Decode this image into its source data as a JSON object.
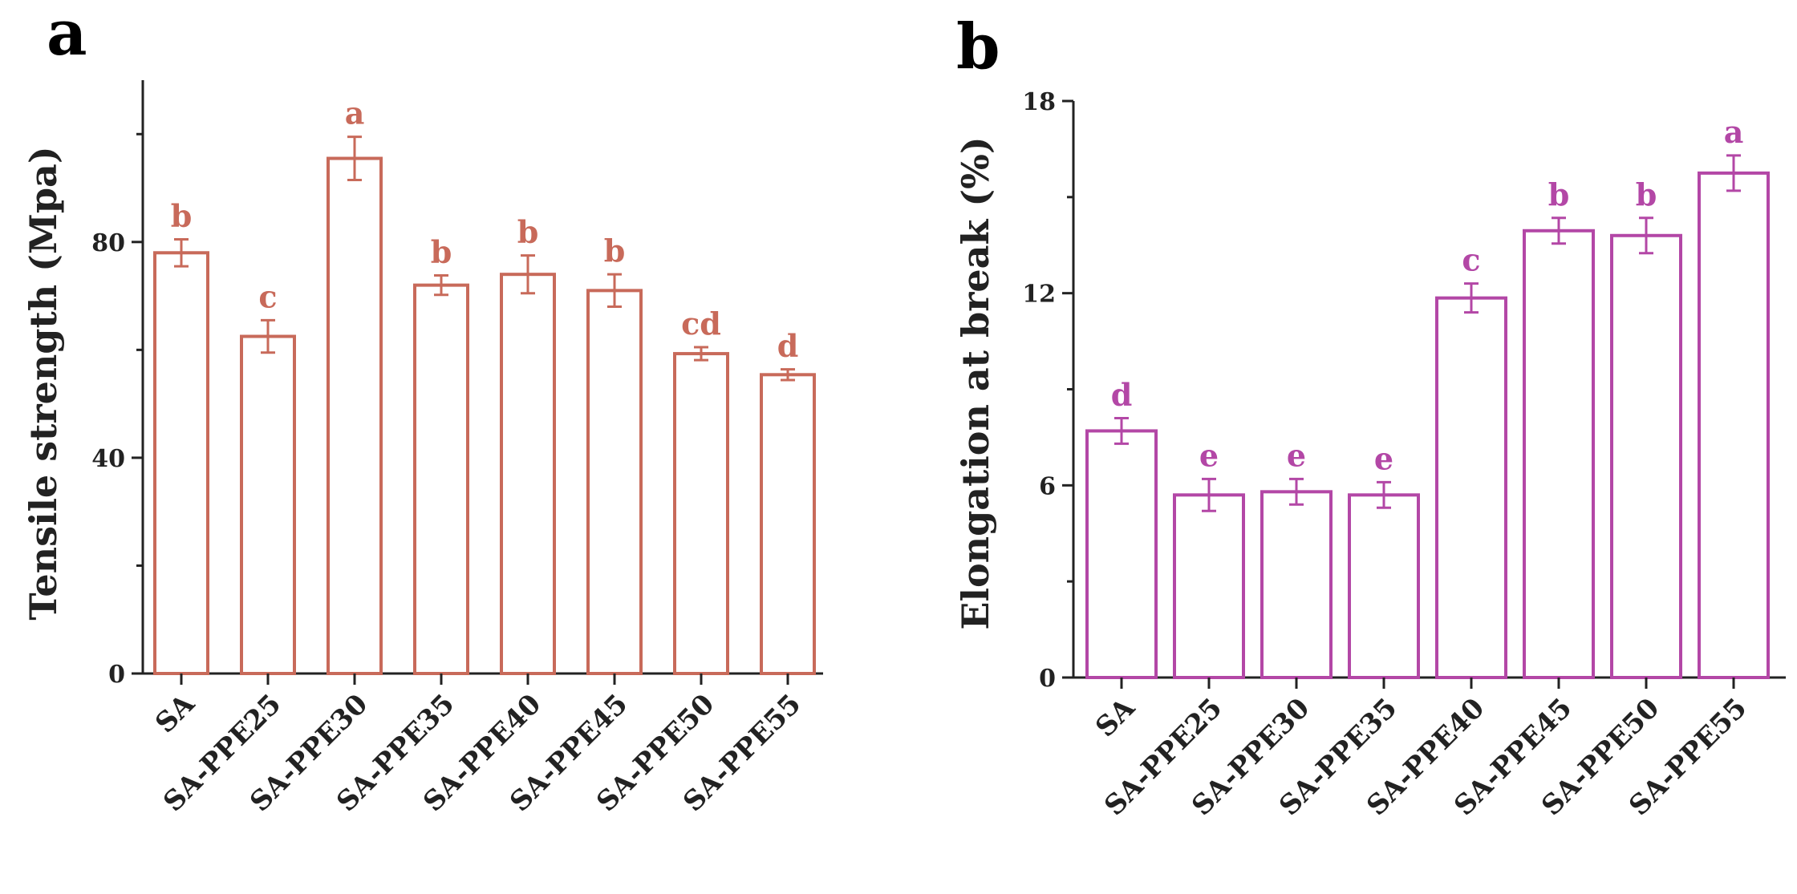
{
  "chart_data": [
    {
      "type": "bar",
      "panel_label": "a",
      "color": "#c86a5a",
      "ylabel": "Tensile strength (Mpa)",
      "ylim": [
        0,
        110
      ],
      "yticks": [
        0,
        40,
        80
      ],
      "categories": [
        "SA",
        "SA-PPE25",
        "SA-PPE30",
        "SA-PPE35",
        "SA-PPE40",
        "SA-PPE45",
        "SA-PPE50",
        "SA-PPE55"
      ],
      "values": [
        78,
        62.5,
        95.5,
        72,
        74,
        71,
        59.3,
        55.4
      ],
      "errors": [
        2.5,
        3.0,
        4.0,
        1.8,
        3.5,
        3.0,
        1.2,
        1.0
      ],
      "significance": [
        "b",
        "c",
        "a",
        "b",
        "b",
        "b",
        "cd",
        "d"
      ]
    },
    {
      "type": "bar",
      "panel_label": "b",
      "color": "#b347a6",
      "ylabel": "Elongation at break (%)",
      "ylim": [
        0,
        18
      ],
      "yticks": [
        0,
        6,
        12,
        18
      ],
      "categories": [
        "SA",
        "SA-PPE25",
        "SA-PPE30",
        "SA-PPE35",
        "SA-PPE40",
        "SA-PPE45",
        "SA-PPE50",
        "SA-PPE55"
      ],
      "values": [
        7.7,
        5.7,
        5.8,
        5.7,
        11.85,
        13.95,
        13.8,
        15.75
      ],
      "errors": [
        0.4,
        0.5,
        0.4,
        0.4,
        0.45,
        0.4,
        0.55,
        0.55
      ],
      "significance": [
        "d",
        "e",
        "e",
        "e",
        "c",
        "b",
        "b",
        "a"
      ]
    }
  ]
}
